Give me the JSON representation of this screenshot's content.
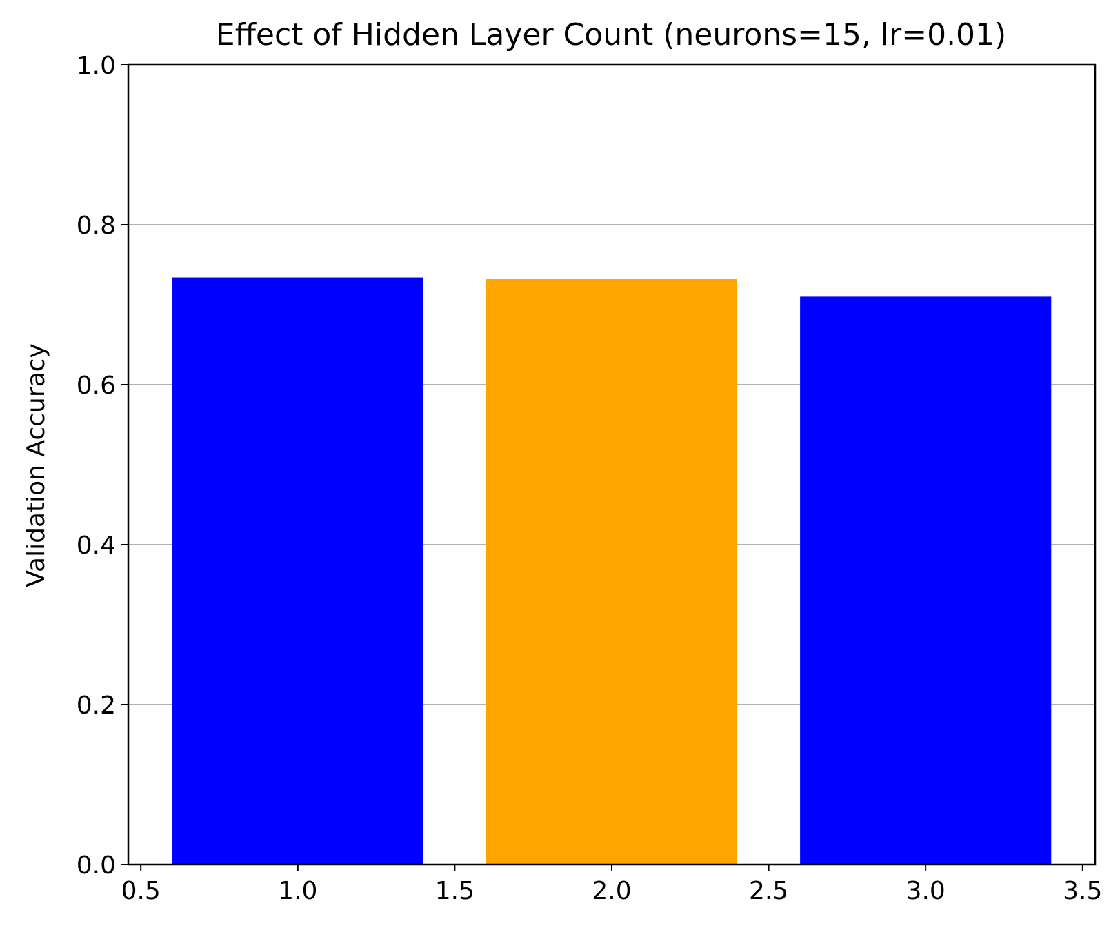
{
  "chart_data": {
    "type": "bar",
    "title": "Effect of Hidden Layer Count (neurons=15, lr=0.01)",
    "xlabel": "",
    "ylabel": "Validation Accuracy",
    "x": [
      1,
      2,
      3
    ],
    "values": [
      0.734,
      0.732,
      0.71
    ],
    "bar_width": 0.8,
    "bar_colors": [
      "#0000ff",
      "#ffa500",
      "#0000ff"
    ],
    "xlim": [
      0.46,
      3.54
    ],
    "ylim": [
      0.0,
      1.0
    ],
    "xticks": [
      0.5,
      1.0,
      1.5,
      2.0,
      2.5,
      3.0,
      3.5
    ],
    "xtick_labels": [
      "0.5",
      "1.0",
      "1.5",
      "2.0",
      "2.5",
      "3.0",
      "3.5"
    ],
    "yticks": [
      0.0,
      0.2,
      0.4,
      0.6,
      0.8,
      1.0
    ],
    "ytick_labels": [
      "0.0",
      "0.2",
      "0.4",
      "0.6",
      "0.8",
      "1.0"
    ],
    "grid": "y-axis only",
    "grid_color": "#b0b0b0",
    "axis_color": "#000000"
  }
}
